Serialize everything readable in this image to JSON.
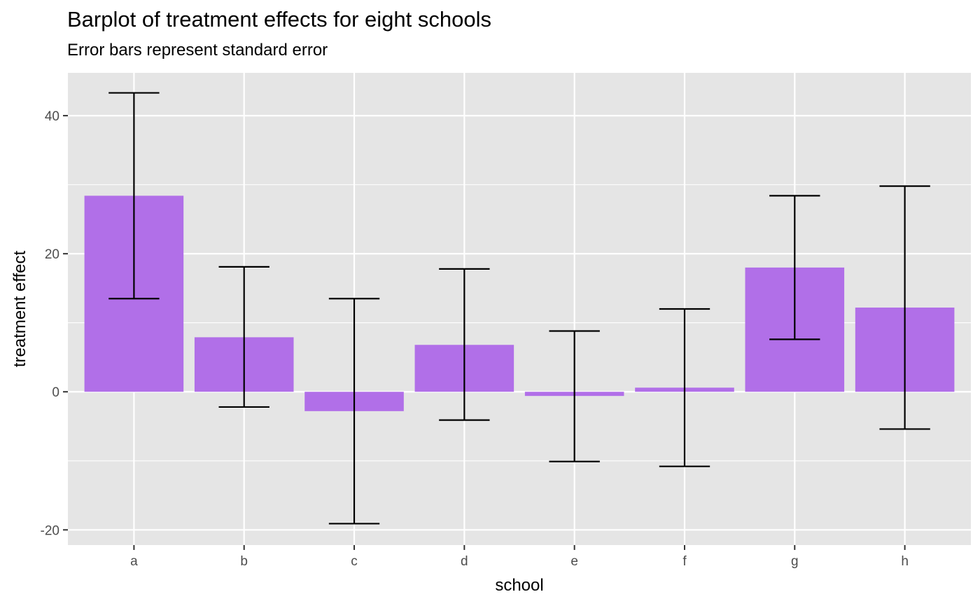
{
  "chart_data": {
    "type": "bar",
    "title": "Barplot of treatment effects for eight schools",
    "subtitle": "Error bars represent standard error",
    "xlabel": "school",
    "ylabel": "treatment effect",
    "categories": [
      "a",
      "b",
      "c",
      "d",
      "e",
      "f",
      "g",
      "h"
    ],
    "values": [
      28.4,
      7.9,
      -2.8,
      6.8,
      -0.6,
      0.6,
      18.0,
      12.2
    ],
    "error_lower": [
      13.5,
      -2.2,
      -19.1,
      -4.1,
      -10.1,
      -10.8,
      7.6,
      -5.4
    ],
    "error_upper": [
      43.3,
      18.1,
      13.5,
      17.8,
      8.8,
      12.0,
      28.4,
      29.8
    ],
    "ylim": [
      -22.2,
      46.2
    ],
    "yticks": [
      -20,
      0,
      20,
      40
    ],
    "grid": true,
    "colors": {
      "bar": "#b16fe8",
      "panel": "#e5e5e5",
      "grid": "#ffffff",
      "errorbar": "#000000"
    }
  }
}
